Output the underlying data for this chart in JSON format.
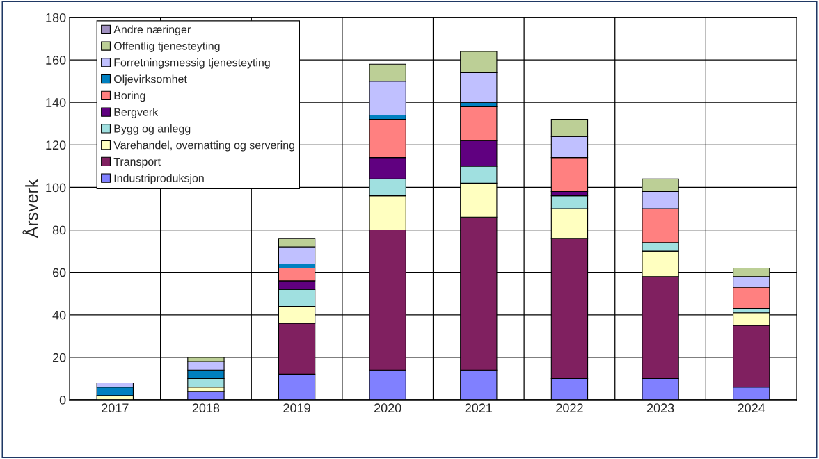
{
  "chart_data": {
    "type": "bar",
    "stacked": true,
    "ylabel": "Årsverk",
    "categories": [
      "2017",
      "2018",
      "2019",
      "2020",
      "2021",
      "2022",
      "2023",
      "2024"
    ],
    "series": [
      {
        "name": "Industriproduksjon",
        "color": "#8080ff",
        "values": [
          null,
          4,
          12,
          14,
          14,
          10,
          10,
          6
        ]
      },
      {
        "name": "Transport",
        "color": "#802060",
        "values": [
          null,
          null,
          24,
          66,
          72,
          66,
          48,
          29
        ]
      },
      {
        "name": "Varehandel, overnatting og servering",
        "color": "#ffffc0",
        "values": [
          2,
          2,
          8,
          16,
          16,
          14,
          12,
          6
        ]
      },
      {
        "name": "Bygg og anlegg",
        "color": "#a0e0e0",
        "values": [
          null,
          4,
          8,
          8,
          8,
          6,
          4,
          2
        ]
      },
      {
        "name": "Bergverk",
        "color": "#600080",
        "values": [
          null,
          null,
          4,
          10,
          12,
          2,
          null,
          null
        ]
      },
      {
        "name": "Boring",
        "color": "#ff8080",
        "values": [
          null,
          null,
          6,
          18,
          16,
          16,
          16,
          10
        ]
      },
      {
        "name": "Oljevirksomhet",
        "color": "#0080c0",
        "values": [
          4,
          4,
          2,
          2,
          2,
          null,
          null,
          null
        ]
      },
      {
        "name": "Forretningsmessig tjenesteyting",
        "color": "#c0c0ff",
        "values": [
          2,
          4,
          8,
          16,
          14,
          10,
          8,
          5
        ]
      },
      {
        "name": "Offentlig tjenesteyting",
        "color": "#bccf96",
        "values": [
          null,
          2,
          4,
          8,
          10,
          8,
          6,
          4
        ]
      },
      {
        "name": "Andre næringer",
        "color": "#a090c0",
        "values": [
          null,
          null,
          null,
          null,
          null,
          null,
          null,
          null
        ]
      }
    ],
    "ylim": [
      0,
      180
    ],
    "yticks": [
      0,
      20,
      40,
      60,
      80,
      100,
      120,
      140,
      160,
      180
    ],
    "grid": true,
    "legend": "top left"
  }
}
